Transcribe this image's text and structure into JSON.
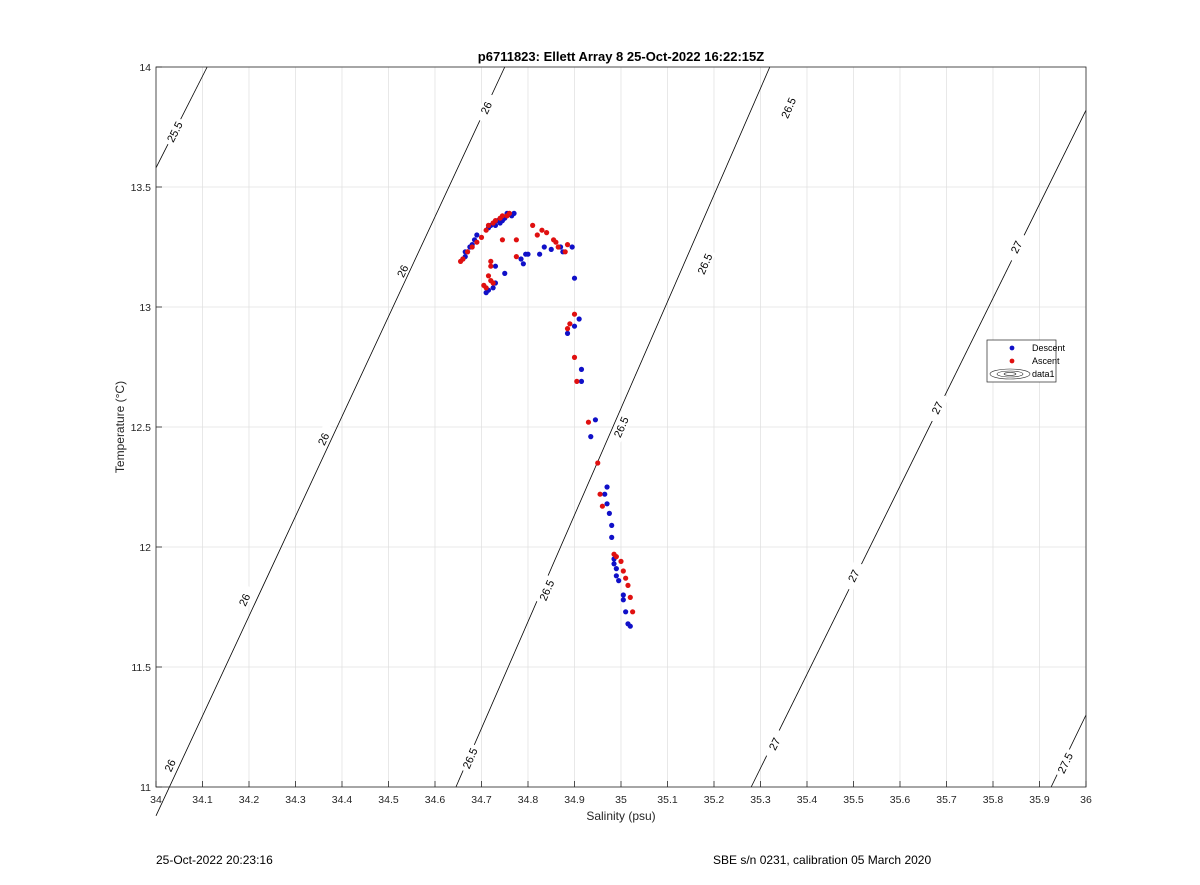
{
  "chart_data": {
    "type": "scatter",
    "title": "p6711823: Ellett Array 8 25-Oct-2022 16:22:15Z",
    "xlabel": "Salinity (psu)",
    "ylabel": "Temperature (°C)",
    "xlim": [
      34,
      36
    ],
    "ylim": [
      11,
      14
    ],
    "xticks": [
      "34",
      "34.1",
      "34.2",
      "34.3",
      "34.4",
      "34.5",
      "34.6",
      "34.7",
      "34.8",
      "34.9",
      "35",
      "35.1",
      "35.2",
      "35.3",
      "35.4",
      "35.5",
      "35.6",
      "35.7",
      "35.8",
      "35.9",
      "36"
    ],
    "yticks": [
      "11",
      "11.5",
      "12",
      "12.5",
      "13",
      "13.5",
      "14"
    ],
    "grid": true,
    "legend": {
      "placement": "right",
      "entries": [
        "Descent",
        "Ascent",
        "data1"
      ]
    },
    "colors": {
      "descent": "#1010c8",
      "ascent": "#e01010",
      "contour": "#000000",
      "grid": "#e2e2e2"
    },
    "contours": [
      {
        "sigma": 25.5,
        "label": "25.5",
        "points": [
          [
            34.0,
            13.58
          ],
          [
            34.11,
            14.0
          ]
        ],
        "labels": [
          [
            34.04,
            13.73
          ]
        ]
      },
      {
        "sigma": 26.0,
        "label": "26",
        "points": [
          [
            34.0,
            10.88
          ],
          [
            34.75,
            14.0
          ]
        ],
        "labels": [
          [
            34.03,
            11.09
          ],
          [
            34.19,
            11.78
          ],
          [
            34.36,
            12.45
          ],
          [
            34.53,
            13.15
          ],
          [
            34.71,
            13.83
          ]
        ]
      },
      {
        "sigma": 26.5,
        "label": "26.5",
        "points": [
          [
            34.645,
            11.0
          ],
          [
            35.32,
            14.0
          ]
        ],
        "labels": [
          [
            34.675,
            11.12
          ],
          [
            34.84,
            11.82
          ],
          [
            35.0,
            12.5
          ],
          [
            35.18,
            13.18
          ],
          [
            35.36,
            13.83
          ]
        ]
      },
      {
        "sigma": 27.0,
        "label": "27",
        "points": [
          [
            35.28,
            11.0
          ],
          [
            36.0,
            13.82
          ]
        ],
        "labels": [
          [
            35.33,
            11.18
          ],
          [
            35.5,
            11.88
          ],
          [
            35.68,
            12.58
          ],
          [
            35.85,
            13.25
          ]
        ]
      },
      {
        "sigma": 27.5,
        "label": "27.5",
        "points": [
          [
            35.925,
            11.0
          ],
          [
            36.0,
            11.3
          ]
        ],
        "labels": [
          [
            35.955,
            11.1
          ]
        ]
      }
    ],
    "series": [
      {
        "name": "Descent",
        "points": [
          [
            34.77,
            13.39
          ],
          [
            34.765,
            13.38
          ],
          [
            34.755,
            13.39
          ],
          [
            34.75,
            13.37
          ],
          [
            34.745,
            13.36
          ],
          [
            34.74,
            13.35
          ],
          [
            34.735,
            13.36
          ],
          [
            34.73,
            13.34
          ],
          [
            34.72,
            13.34
          ],
          [
            34.715,
            13.33
          ],
          [
            34.69,
            13.3
          ],
          [
            34.685,
            13.28
          ],
          [
            34.68,
            13.26
          ],
          [
            34.675,
            13.25
          ],
          [
            34.67,
            13.23
          ],
          [
            34.665,
            13.23
          ],
          [
            34.665,
            13.21
          ],
          [
            34.66,
            13.2
          ],
          [
            34.73,
            13.17
          ],
          [
            34.75,
            13.14
          ],
          [
            34.73,
            13.1
          ],
          [
            34.725,
            13.08
          ],
          [
            34.715,
            13.07
          ],
          [
            34.71,
            13.06
          ],
          [
            34.79,
            13.18
          ],
          [
            34.785,
            13.2
          ],
          [
            34.795,
            13.22
          ],
          [
            34.8,
            13.22
          ],
          [
            34.825,
            13.22
          ],
          [
            34.835,
            13.25
          ],
          [
            34.85,
            13.24
          ],
          [
            34.87,
            13.25
          ],
          [
            34.875,
            13.23
          ],
          [
            34.895,
            13.25
          ],
          [
            34.9,
            13.12
          ],
          [
            34.91,
            12.95
          ],
          [
            34.9,
            12.92
          ],
          [
            34.885,
            12.89
          ],
          [
            34.915,
            12.74
          ],
          [
            34.915,
            12.69
          ],
          [
            34.945,
            12.53
          ],
          [
            34.935,
            12.46
          ],
          [
            34.97,
            12.25
          ],
          [
            34.965,
            12.22
          ],
          [
            34.97,
            12.18
          ],
          [
            34.975,
            12.14
          ],
          [
            34.98,
            12.09
          ],
          [
            34.98,
            12.04
          ],
          [
            34.985,
            11.95
          ],
          [
            34.985,
            11.93
          ],
          [
            34.99,
            11.91
          ],
          [
            34.99,
            11.88
          ],
          [
            34.995,
            11.86
          ],
          [
            35.005,
            11.8
          ],
          [
            35.005,
            11.78
          ],
          [
            35.01,
            11.73
          ],
          [
            35.015,
            11.68
          ],
          [
            35.02,
            11.67
          ]
        ]
      },
      {
        "name": "Ascent",
        "points": [
          [
            34.76,
            13.39
          ],
          [
            34.755,
            13.38
          ],
          [
            34.745,
            13.38
          ],
          [
            34.74,
            13.37
          ],
          [
            34.73,
            13.36
          ],
          [
            34.725,
            13.35
          ],
          [
            34.715,
            13.34
          ],
          [
            34.71,
            13.32
          ],
          [
            34.7,
            13.29
          ],
          [
            34.69,
            13.27
          ],
          [
            34.68,
            13.25
          ],
          [
            34.67,
            13.23
          ],
          [
            34.66,
            13.2
          ],
          [
            34.655,
            13.19
          ],
          [
            34.745,
            13.28
          ],
          [
            34.72,
            13.19
          ],
          [
            34.72,
            13.17
          ],
          [
            34.715,
            13.13
          ],
          [
            34.72,
            13.11
          ],
          [
            34.725,
            13.1
          ],
          [
            34.705,
            13.09
          ],
          [
            34.71,
            13.08
          ],
          [
            34.775,
            13.28
          ],
          [
            34.775,
            13.21
          ],
          [
            34.81,
            13.34
          ],
          [
            34.83,
            13.32
          ],
          [
            34.82,
            13.3
          ],
          [
            34.84,
            13.31
          ],
          [
            34.855,
            13.28
          ],
          [
            34.86,
            13.27
          ],
          [
            34.865,
            13.25
          ],
          [
            34.88,
            13.23
          ],
          [
            34.885,
            13.26
          ],
          [
            34.9,
            12.97
          ],
          [
            34.89,
            12.93
          ],
          [
            34.885,
            12.91
          ],
          [
            34.9,
            12.79
          ],
          [
            34.905,
            12.69
          ],
          [
            34.93,
            12.52
          ],
          [
            34.95,
            12.35
          ],
          [
            34.955,
            12.22
          ],
          [
            34.96,
            12.17
          ],
          [
            34.985,
            11.97
          ],
          [
            34.99,
            11.96
          ],
          [
            35.0,
            11.94
          ],
          [
            35.005,
            11.9
          ],
          [
            35.01,
            11.87
          ],
          [
            35.015,
            11.84
          ],
          [
            35.02,
            11.79
          ],
          [
            35.025,
            11.73
          ]
        ]
      }
    ]
  },
  "footer": {
    "left": "25-Oct-2022 20:23:16",
    "right": "SBE s/n 0231, calibration 05 March 2020"
  }
}
